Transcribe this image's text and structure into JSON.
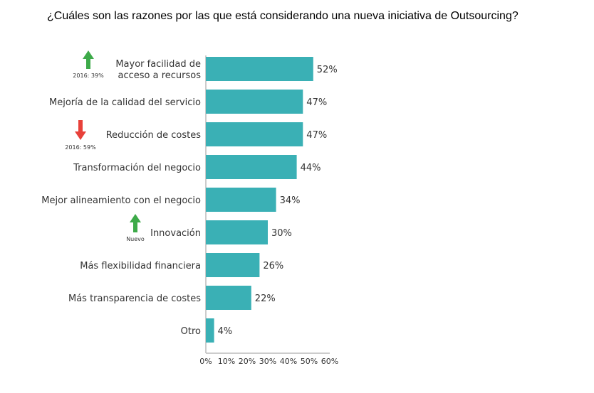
{
  "chart_data": {
    "type": "bar",
    "orientation": "horizontal",
    "title": "¿Cuáles son las razones por las que está considerando una nueva iniciativa de Outsourcing?",
    "categories": [
      [
        "Mayor facilidad de",
        "acceso a recursos"
      ],
      [
        "Mejoría de la calidad del servicio"
      ],
      [
        "Reducción de costes"
      ],
      [
        "Transformación del negocio"
      ],
      [
        "Mejor alineamiento con el negocio"
      ],
      [
        "Innovación"
      ],
      [
        "Más flexibilidad financiera"
      ],
      [
        "Más transparencia de costes"
      ],
      [
        "Otro"
      ]
    ],
    "values": [
      52,
      47,
      47,
      44,
      34,
      30,
      26,
      22,
      4
    ],
    "value_labels": [
      "52%",
      "47%",
      "47%",
      "44%",
      "34%",
      "30%",
      "26%",
      "22%",
      "4%"
    ],
    "annotations": [
      {
        "index": 0,
        "direction": "up",
        "text": "2016: 39%"
      },
      {
        "index": 2,
        "direction": "down",
        "text": "2016: 59%"
      },
      {
        "index": 5,
        "direction": "up",
        "text": "Nuevo"
      }
    ],
    "xlim": [
      0,
      60
    ],
    "xticks": [
      "0%",
      "10%",
      "20%",
      "30%",
      "40%",
      "50%",
      "60%"
    ],
    "xtick_values": [
      0,
      10,
      20,
      30,
      40,
      50,
      60
    ],
    "grid": false,
    "colors": {
      "bar": "#3AB0B5",
      "up": "#3DAA49",
      "down": "#E8413A",
      "axis": "#bbbbbb"
    }
  }
}
